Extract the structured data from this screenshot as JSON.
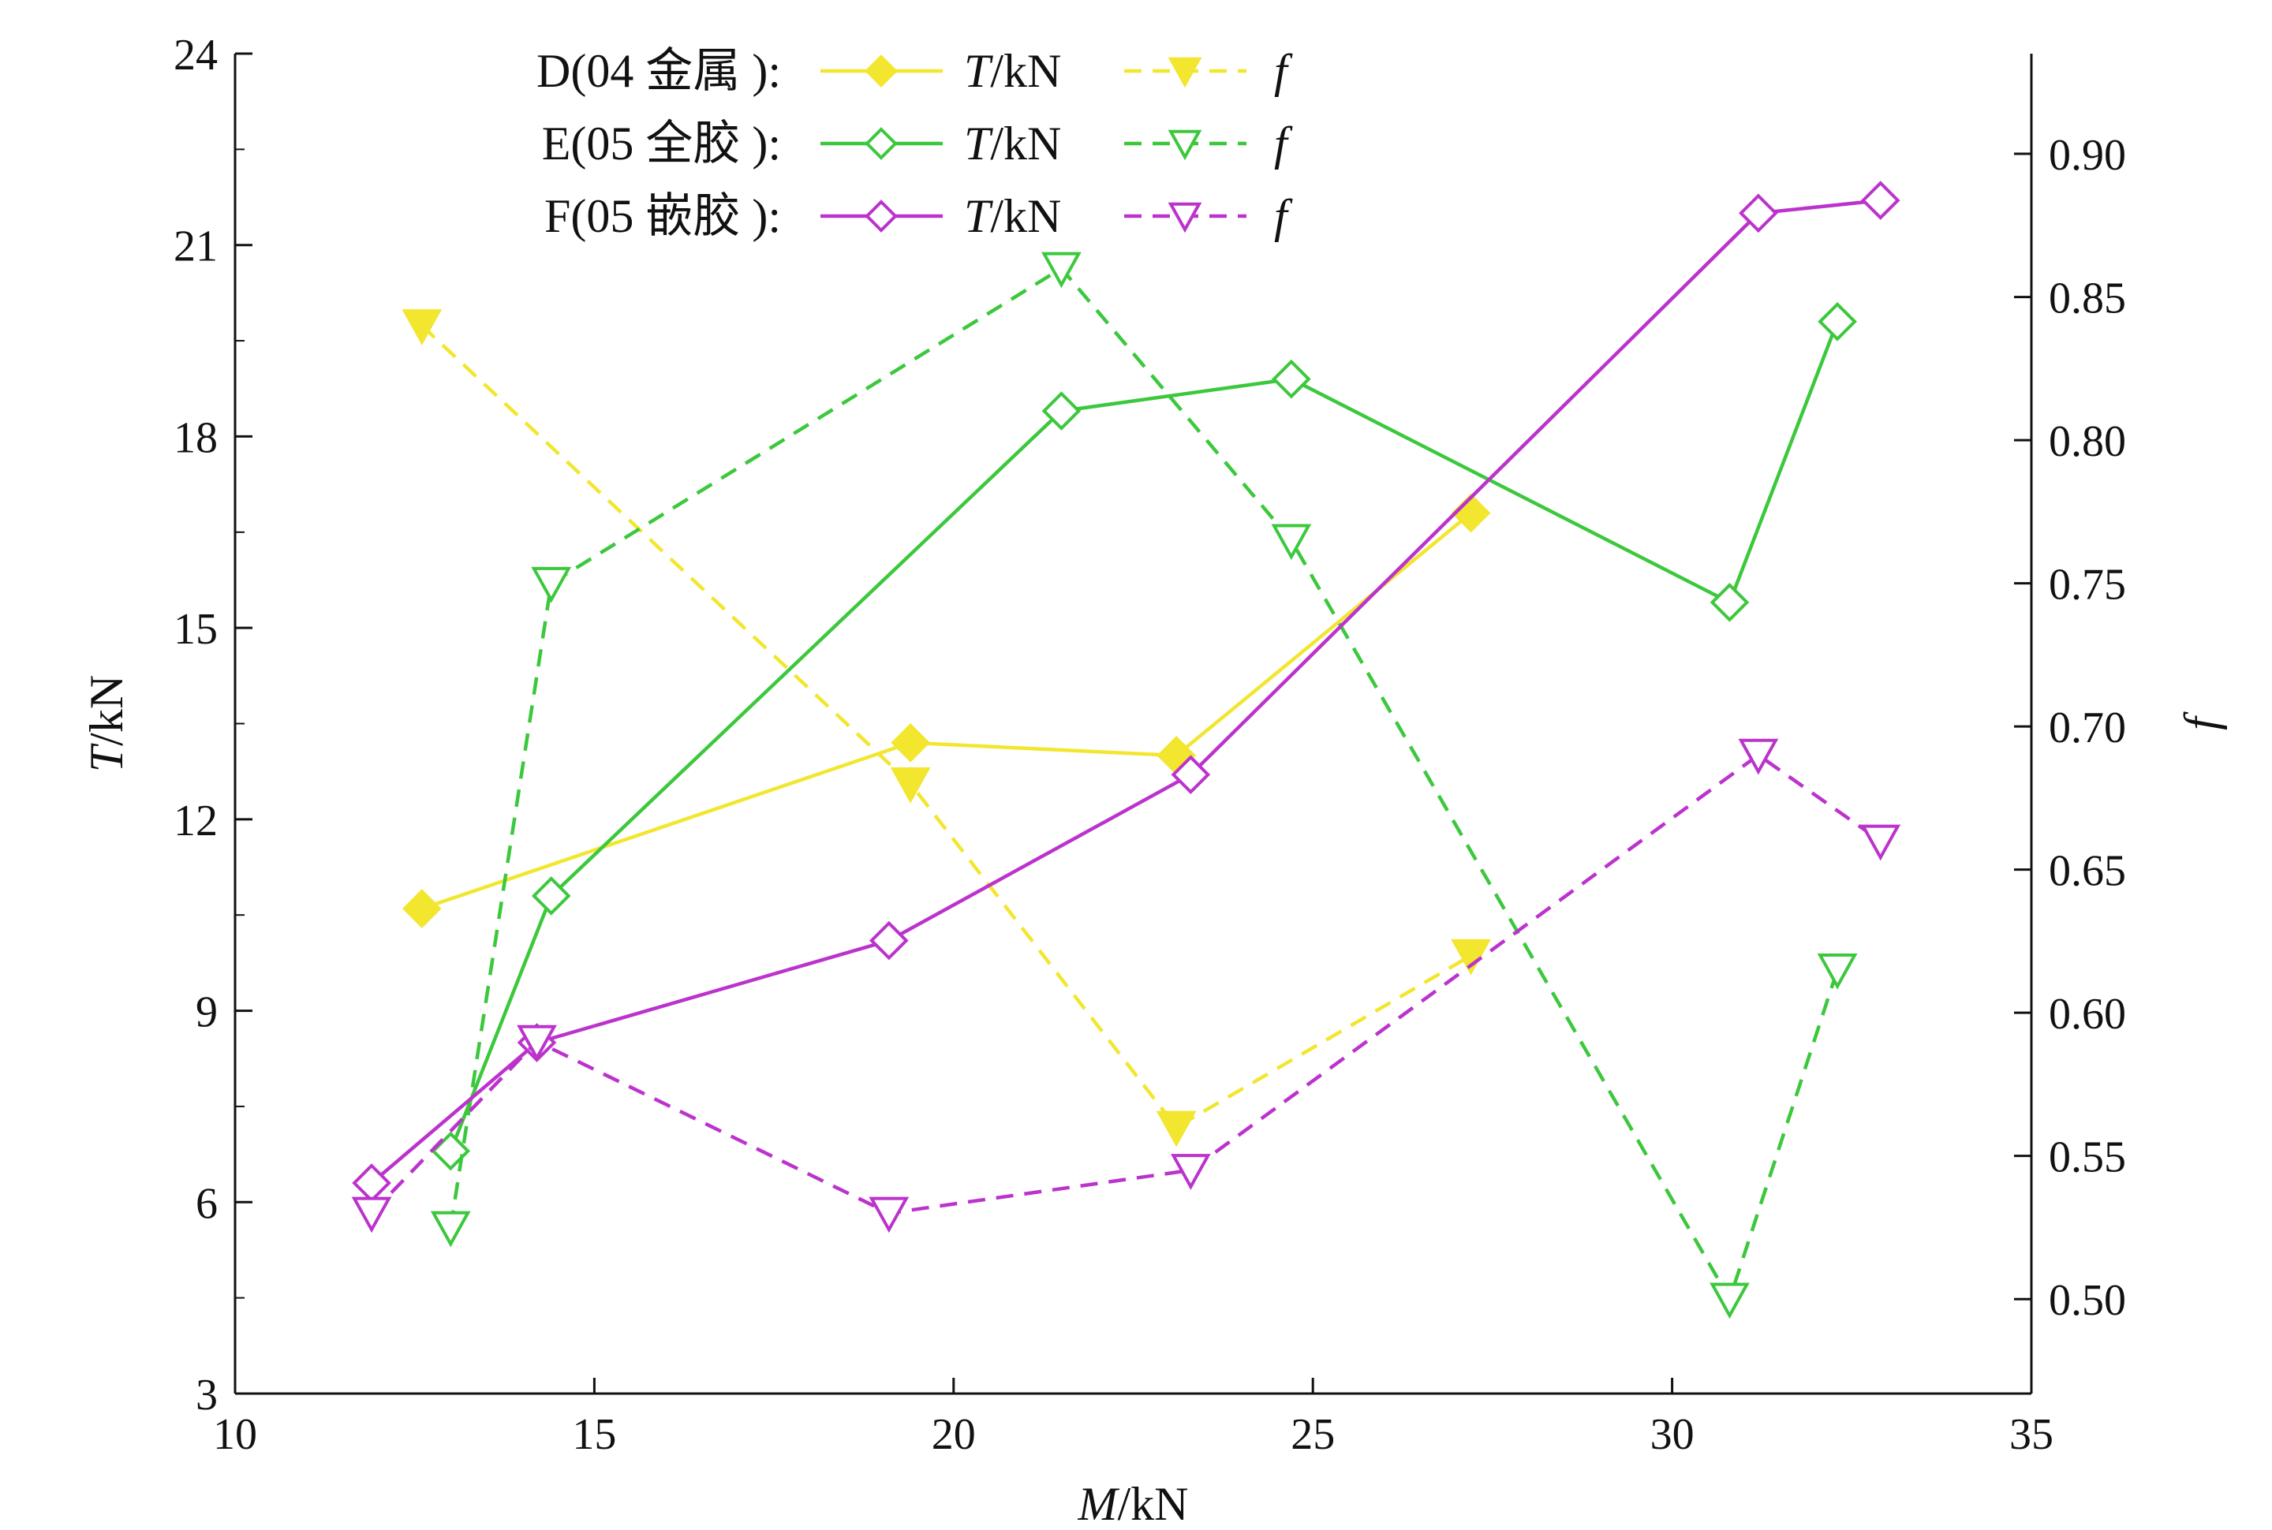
{
  "chart_data": {
    "type": "line",
    "xlabel": {
      "italic": "M",
      "rest": "/kN"
    },
    "ylabel_left": {
      "italic": "T",
      "rest": "/kN"
    },
    "ylabel_right": {
      "italic": "f",
      "rest": ""
    },
    "xlim": [
      10,
      35
    ],
    "ylim_left": [
      3,
      24
    ],
    "ylim_right": [
      0.467,
      0.935
    ],
    "x_ticks": [
      10,
      15,
      20,
      25,
      30,
      35
    ],
    "y_left_ticks": [
      3,
      6,
      9,
      12,
      15,
      18,
      21,
      24
    ],
    "y_right_ticks": [
      "0.50",
      "0.55",
      "0.60",
      "0.65",
      "0.70",
      "0.75",
      "0.80",
      "0.85",
      "0.90"
    ],
    "grid": false,
    "legend_position": "top-left",
    "legend": [
      {
        "label": "D(04 金属 ):",
        "t_label": {
          "italic": "T",
          "rest": "/kN"
        },
        "f_label": "f",
        "color": "#f2e62e"
      },
      {
        "label": "E(05 全胶 ):",
        "t_label": {
          "italic": "T",
          "rest": "/kN"
        },
        "f_label": "f",
        "color": "#3cc83c"
      },
      {
        "label": "F(05 嵌胶 ):",
        "t_label": {
          "italic": "T",
          "rest": "/kN"
        },
        "f_label": "f",
        "color": "#bb33cc"
      }
    ],
    "series": [
      {
        "name": "D(04 金属 ): T/kN",
        "axis": "left",
        "style": "solid",
        "marker": "diamond-filled",
        "color": "#f2e62e",
        "points": [
          [
            12.6,
            10.6
          ],
          [
            19.4,
            13.2
          ],
          [
            23.1,
            13.0
          ],
          [
            27.2,
            16.8
          ]
        ]
      },
      {
        "name": "D(04 金属 ): f",
        "axis": "right",
        "style": "dashed",
        "marker": "triangle-filled",
        "color": "#f2e62e",
        "points": [
          [
            12.6,
            0.84
          ],
          [
            19.4,
            0.68
          ],
          [
            23.1,
            0.56
          ],
          [
            27.2,
            0.62
          ]
        ]
      },
      {
        "name": "E(05 全胶 ): T/kN",
        "axis": "left",
        "style": "solid",
        "marker": "diamond-open",
        "color": "#3cc83c",
        "points": [
          [
            13.0,
            6.8
          ],
          [
            14.4,
            10.8
          ],
          [
            21.5,
            18.4
          ],
          [
            24.7,
            18.9
          ],
          [
            30.8,
            15.4
          ],
          [
            32.3,
            19.8
          ]
        ]
      },
      {
        "name": "E(05 全胶 ): f",
        "axis": "right",
        "style": "dashed",
        "marker": "triangle-open",
        "color": "#3cc83c",
        "points": [
          [
            13.0,
            0.525
          ],
          [
            14.4,
            0.75
          ],
          [
            21.5,
            0.86
          ],
          [
            24.7,
            0.765
          ],
          [
            30.8,
            0.5
          ],
          [
            32.3,
            0.615
          ]
        ]
      },
      {
        "name": "F(05 嵌胶 ): T/kN",
        "axis": "left",
        "style": "solid",
        "marker": "diamond-open",
        "color": "#bb33cc",
        "points": [
          [
            11.9,
            6.3
          ],
          [
            14.2,
            8.5
          ],
          [
            19.1,
            10.1
          ],
          [
            23.3,
            12.7
          ],
          [
            31.2,
            21.5
          ],
          [
            32.9,
            21.7
          ]
        ]
      },
      {
        "name": "F(05 嵌胶 ): f",
        "axis": "right",
        "style": "dashed",
        "marker": "triangle-open",
        "color": "#bb33cc",
        "points": [
          [
            11.9,
            0.53
          ],
          [
            14.2,
            0.59
          ],
          [
            19.1,
            0.53
          ],
          [
            23.3,
            0.545
          ],
          [
            31.2,
            0.69
          ],
          [
            32.9,
            0.66
          ]
        ]
      }
    ]
  }
}
